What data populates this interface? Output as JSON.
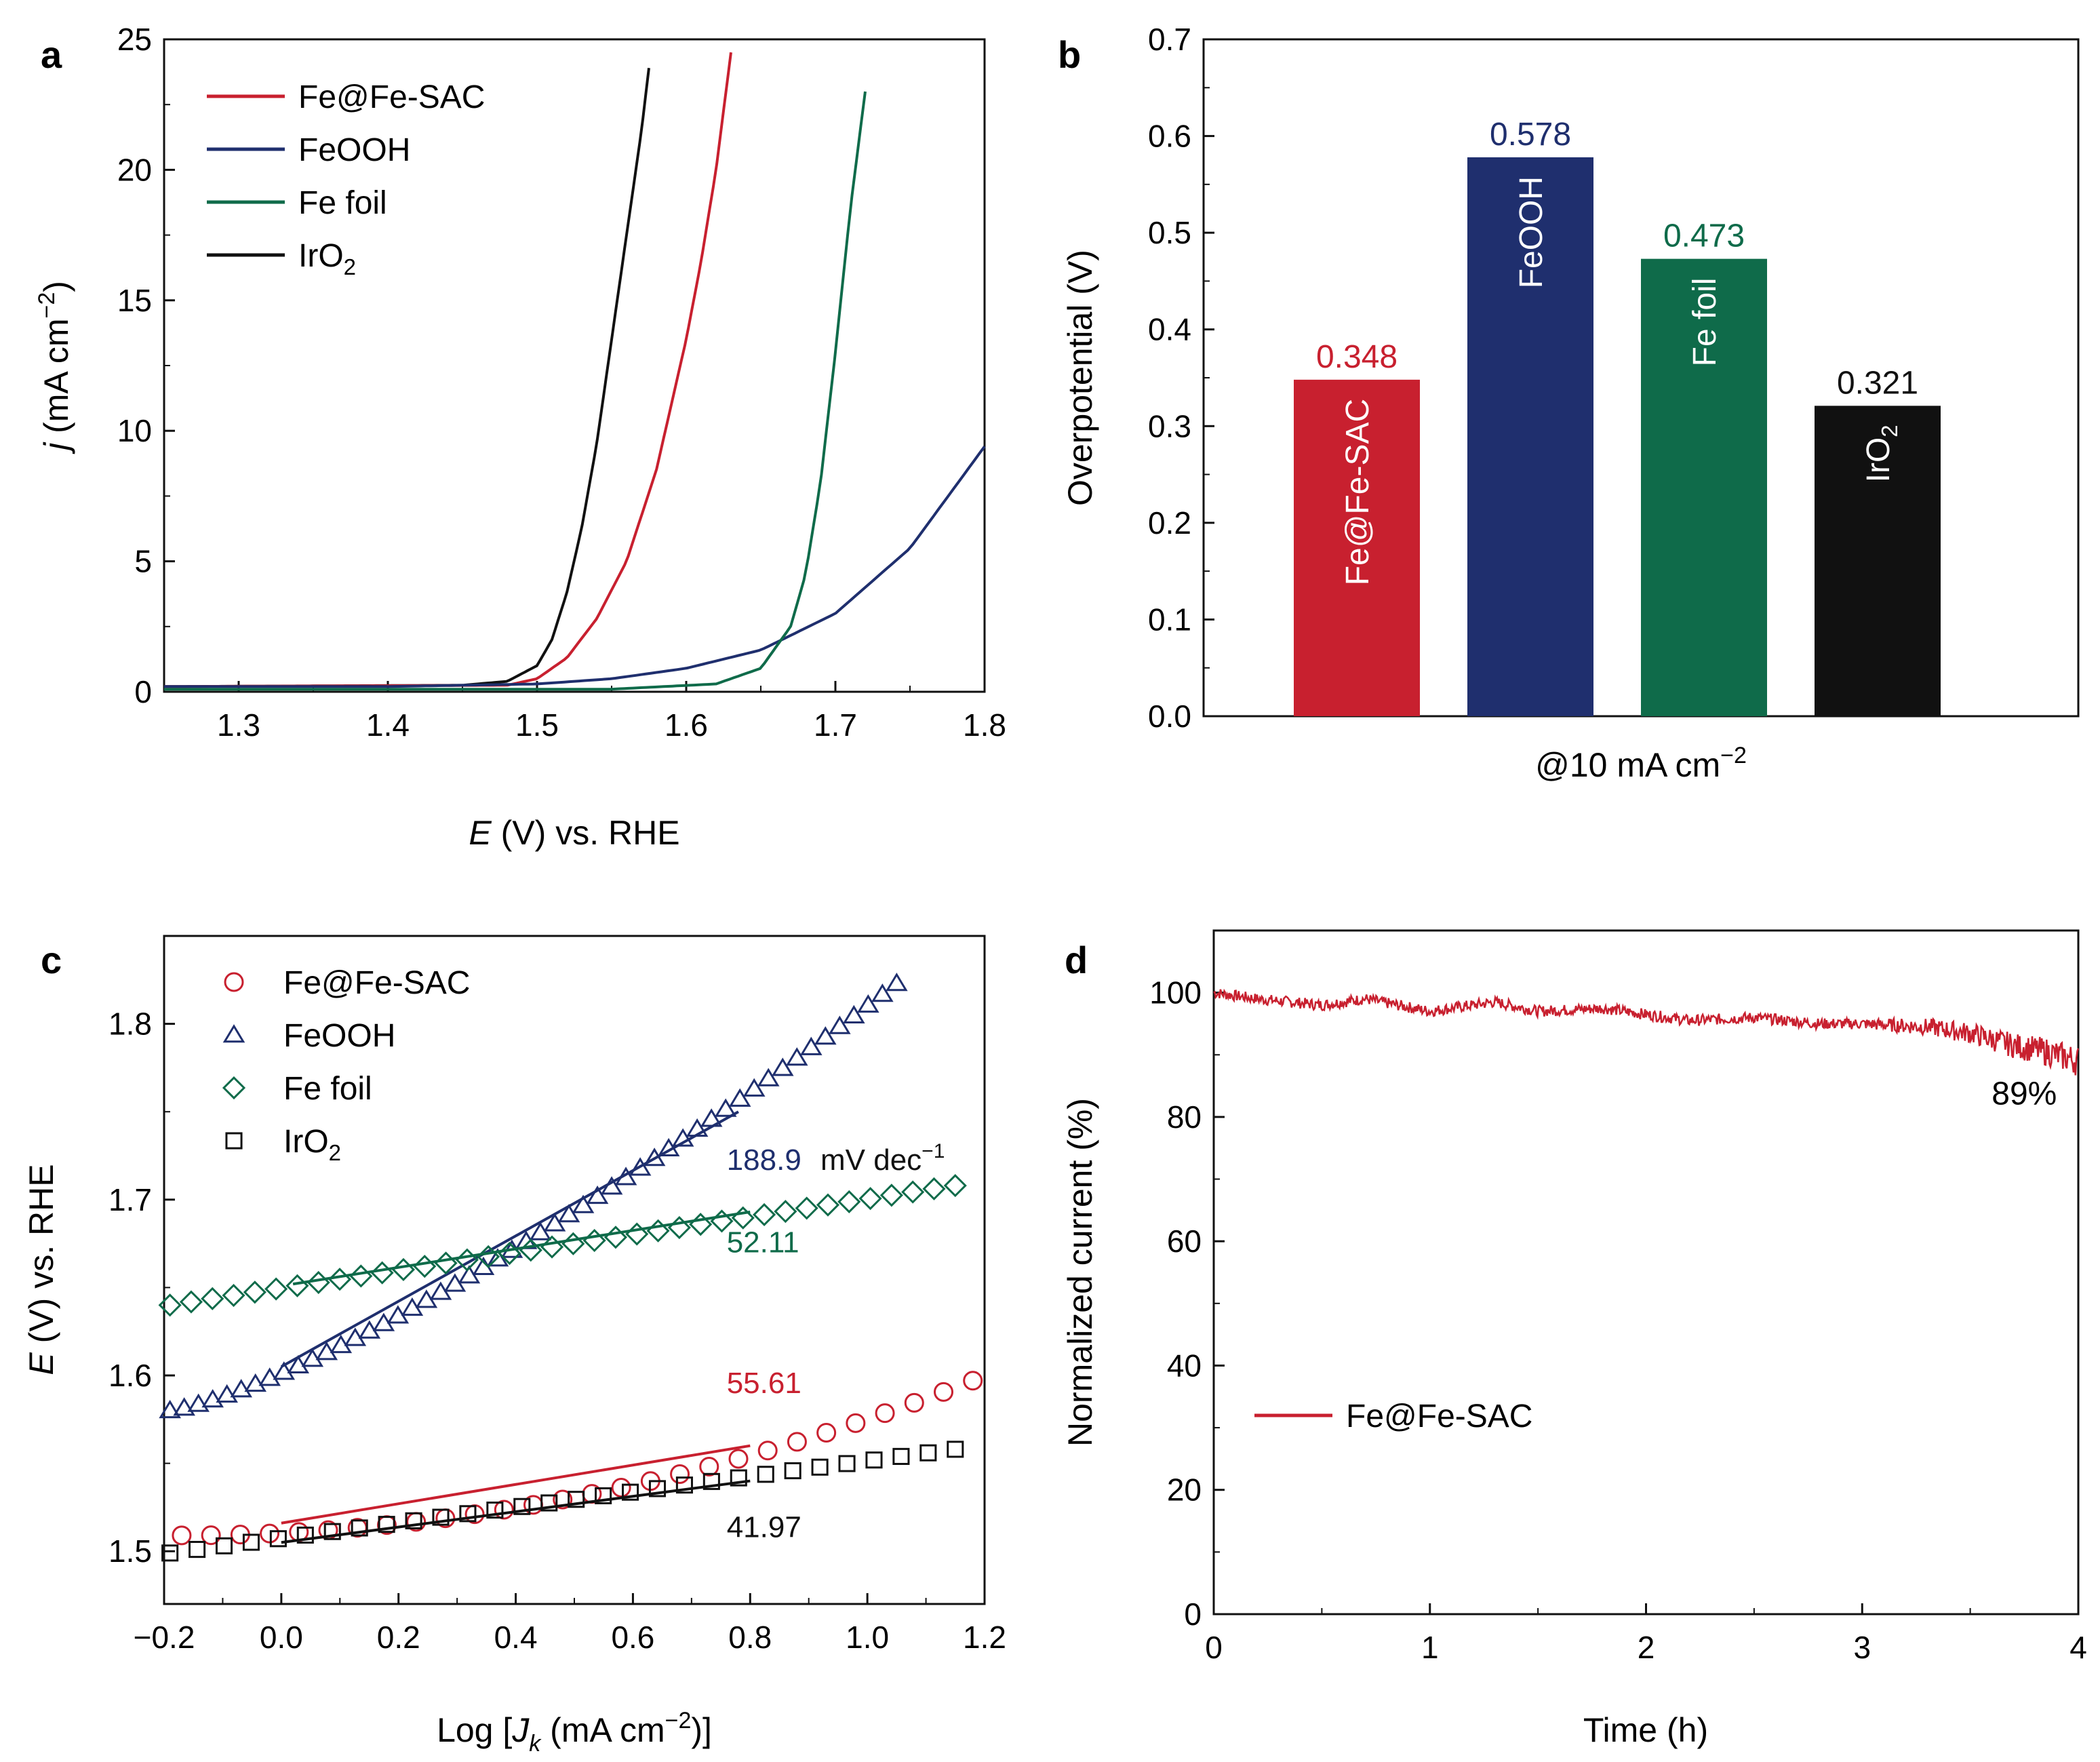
{
  "colors": {
    "fe_sac": "#c8202f",
    "feooh": "#1f2f6e",
    "fe_foil": "#0f6b4a",
    "iro2": "#111111",
    "axis": "#111111"
  },
  "chart_data": [
    {
      "panel": "a",
      "type": "line",
      "xlabel_italic": "E",
      "xlabel_rest": " (V) vs. RHE",
      "ylabel_italic": "j",
      "ylabel_rest": " (mA cm",
      "ylabel_sup": "−2",
      "ylabel_close": ")",
      "xlim": [
        1.25,
        1.8
      ],
      "ylim": [
        0,
        25
      ],
      "xticks": [
        "1.3",
        "1.4",
        "1.5",
        "1.6",
        "1.7",
        "1.8"
      ],
      "yticks": [
        "0",
        "5",
        "10",
        "15",
        "20",
        "25"
      ],
      "legend_position": "top-left",
      "legend": [
        {
          "label": "Fe@Fe-SAC",
          "color": "#c8202f"
        },
        {
          "label": "FeOOH",
          "color": "#1f2f6e"
        },
        {
          "label": "Fe foil",
          "color": "#0f6b4a"
        },
        {
          "label": "IrO",
          "sub": "2",
          "color": "#111111"
        }
      ],
      "series": [
        {
          "name": "IrO2",
          "color": "#111111",
          "x": [
            1.25,
            1.45,
            1.48,
            1.5,
            1.51,
            1.52,
            1.53,
            1.54,
            1.55,
            1.56,
            1.57,
            1.575
          ],
          "y": [
            0.2,
            0.25,
            0.4,
            1.0,
            2.0,
            3.8,
            6.3,
            9.5,
            13.5,
            17.5,
            21.5,
            23.9
          ]
        },
        {
          "name": "Fe@Fe-SAC",
          "color": "#c8202f",
          "x": [
            1.25,
            1.48,
            1.5,
            1.52,
            1.54,
            1.56,
            1.58,
            1.6,
            1.61,
            1.62,
            1.63
          ],
          "y": [
            0.2,
            0.25,
            0.5,
            1.3,
            2.8,
            5.0,
            8.5,
            13.5,
            16.5,
            20.0,
            24.5
          ]
        },
        {
          "name": "FeOOH",
          "color": "#1f2f6e",
          "x": [
            1.25,
            1.4,
            1.5,
            1.55,
            1.6,
            1.65,
            1.7,
            1.75,
            1.8
          ],
          "y": [
            0.2,
            0.2,
            0.3,
            0.5,
            0.9,
            1.6,
            3.0,
            5.5,
            9.4
          ]
        },
        {
          "name": "Fe foil",
          "color": "#0f6b4a",
          "x": [
            1.25,
            1.55,
            1.62,
            1.65,
            1.67,
            1.68,
            1.69,
            1.7,
            1.71,
            1.72
          ],
          "y": [
            0.1,
            0.1,
            0.3,
            0.9,
            2.5,
            4.5,
            8.0,
            13.0,
            18.5,
            23.0
          ]
        }
      ]
    },
    {
      "panel": "b",
      "type": "bar",
      "ylabel": "Overpotential (V)",
      "xlabel": "@10 mA cm",
      "xlabel_sup": "−2",
      "ylim": [
        0,
        0.7
      ],
      "yticks": [
        "0.0",
        "0.1",
        "0.2",
        "0.3",
        "0.4",
        "0.5",
        "0.6",
        "0.7"
      ],
      "bars": [
        {
          "label": "Fe@Fe-SAC",
          "value": 0.348,
          "value_text": "0.348",
          "color": "#c8202f"
        },
        {
          "label": "FeOOH",
          "value": 0.578,
          "value_text": "0.578",
          "color": "#1f2f6e"
        },
        {
          "label": "Fe foil",
          "value": 0.473,
          "value_text": "0.473",
          "color": "#0f6b4a"
        },
        {
          "label": "IrO",
          "sub": "2",
          "value": 0.321,
          "value_text": "0.321",
          "color": "#111111"
        }
      ]
    },
    {
      "panel": "c",
      "type": "scatter",
      "xlabel": "Log [",
      "xlabel_italic": "J",
      "xlabel_sub": "k",
      "xlabel_rest": " (mA cm",
      "xlabel_sup": "−2",
      "xlabel_close": ")]",
      "ylabel_italic": "E",
      "ylabel_rest": " (V) vs. RHE",
      "xlim": [
        -0.2,
        1.2
      ],
      "ylim": [
        1.47,
        1.85
      ],
      "xticks": [
        "−0.2",
        "0.0",
        "0.2",
        "0.4",
        "0.6",
        "0.8",
        "1.0",
        "1.2"
      ],
      "yticks": [
        "1.5",
        "1.6",
        "1.7",
        "1.8"
      ],
      "legend_position": "top-left",
      "legend": [
        {
          "label": "Fe@Fe-SAC",
          "marker": "circle",
          "color": "#c8202f"
        },
        {
          "label": "FeOOH",
          "marker": "triangle",
          "color": "#1f2f6e"
        },
        {
          "label": "Fe foil",
          "marker": "diamond",
          "color": "#0f6b4a"
        },
        {
          "label": "IrO",
          "sub": "2",
          "marker": "square",
          "color": "#111111"
        }
      ],
      "series": [
        {
          "name": "Fe@Fe-SAC",
          "marker": "circle",
          "color": "#c8202f",
          "x_start": -0.17,
          "x_end": 1.18,
          "count": 28,
          "y_start": 1.509,
          "y_end": 1.597,
          "curve": 2.0,
          "fit": {
            "x": [
              0.0,
              0.8
            ],
            "y": [
              1.516,
              1.56
            ]
          }
        },
        {
          "name": "FeOOH",
          "marker": "triangle",
          "color": "#1f2f6e",
          "x_start": -0.19,
          "x_end": 1.05,
          "count": 52,
          "y_start": 1.58,
          "y_end": 1.823,
          "curve": 1.3,
          "fit": {
            "x": [
              0.0,
              0.78
            ],
            "y": [
              1.605,
              1.75
            ]
          }
        },
        {
          "name": "Fe foil",
          "marker": "diamond",
          "color": "#0f6b4a",
          "x_start": -0.19,
          "x_end": 1.15,
          "count": 38,
          "y_start": 1.64,
          "y_end": 1.708,
          "curve": 1.0,
          "fit": {
            "x": [
              0.02,
              0.8
            ],
            "y": [
              1.652,
              1.693
            ]
          }
        },
        {
          "name": "IrO2",
          "marker": "square",
          "color": "#111111",
          "x_start": -0.19,
          "x_end": 1.15,
          "count": 30,
          "y_start": 1.499,
          "y_end": 1.558,
          "curve": 1.0,
          "fit": {
            "x": [
              0.0,
              0.8
            ],
            "y": [
              1.505,
              1.54
            ]
          }
        }
      ],
      "annotations": [
        {
          "text": "188.9",
          "color": "#1f2f6e",
          "x": 0.76,
          "y": 1.717
        },
        {
          "text": " mV dec",
          "color": "#111111",
          "x": 0.92,
          "y": 1.717,
          "sup": "−1"
        },
        {
          "text": "52.11",
          "color": "#0f6b4a",
          "x": 0.76,
          "y": 1.67
        },
        {
          "text": "55.61",
          "color": "#c8202f",
          "x": 0.76,
          "y": 1.59
        },
        {
          "text": "41.97",
          "color": "#111111",
          "x": 0.76,
          "y": 1.508
        }
      ]
    },
    {
      "panel": "d",
      "type": "line",
      "xlabel": "Time (h)",
      "ylabel": "Normalized current (%)",
      "xlim": [
        0,
        4
      ],
      "ylim": [
        0,
        110
      ],
      "xticks": [
        "0",
        "1",
        "2",
        "3",
        "4"
      ],
      "yticks": [
        "0",
        "20",
        "40",
        "60",
        "80",
        "100"
      ],
      "legend_position": "lower-left",
      "legend": [
        {
          "label": "Fe@Fe-SAC",
          "color": "#c8202f"
        }
      ],
      "series": [
        {
          "name": "Fe@Fe-SAC",
          "color": "#c8202f",
          "x": [
            0,
            0.2,
            0.5,
            0.7,
            1.0,
            1.3,
            1.5,
            1.8,
            2.0,
            2.2,
            2.5,
            2.8,
            3.0,
            3.3,
            3.5,
            3.7,
            3.85,
            4.0
          ],
          "y": [
            100,
            99,
            98,
            99,
            97,
            98.5,
            97,
            97.5,
            96.5,
            95.5,
            96,
            95,
            95,
            94.5,
            93.5,
            91.5,
            90.5,
            89
          ]
        }
      ],
      "annotations": [
        {
          "text": "89%",
          "x": 3.75,
          "y": 82
        }
      ]
    }
  ],
  "panels": {
    "a": "a",
    "b": "b",
    "c": "c",
    "d": "d"
  }
}
